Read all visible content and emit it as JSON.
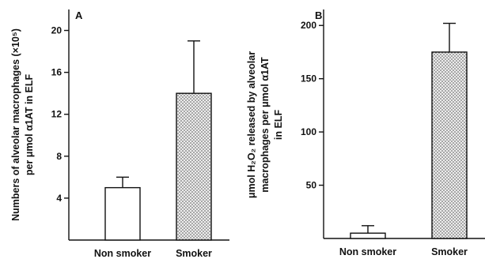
{
  "chart_data": [
    {
      "panel": "A",
      "type": "bar",
      "categories": [
        "Non smoker",
        "Smoker"
      ],
      "values": [
        5,
        14
      ],
      "error_upper": [
        6,
        19
      ],
      "ylabel_lines": [
        "Numbers of alveolar macrophages (×10⁵)",
        "per μmol α1AT in ELF"
      ],
      "yticks": [
        4,
        8,
        12,
        16,
        20
      ],
      "ylim": [
        0,
        22
      ],
      "bar_fill": [
        "white",
        "stippled"
      ]
    },
    {
      "panel": "B",
      "type": "bar",
      "categories": [
        "Non smoker",
        "Smoker"
      ],
      "values": [
        5,
        175
      ],
      "error_upper": [
        12,
        202
      ],
      "ylabel_lines": [
        "μmol H₂O₂ released by alveolar",
        "macrophages per μmol α1AT",
        "in ELF"
      ],
      "yticks": [
        50,
        100,
        150,
        200
      ],
      "ylim": [
        0,
        215
      ],
      "bar_fill": [
        "white",
        "stippled"
      ]
    }
  ],
  "colors": {
    "ink": "#111111",
    "background": "#ffffff"
  }
}
